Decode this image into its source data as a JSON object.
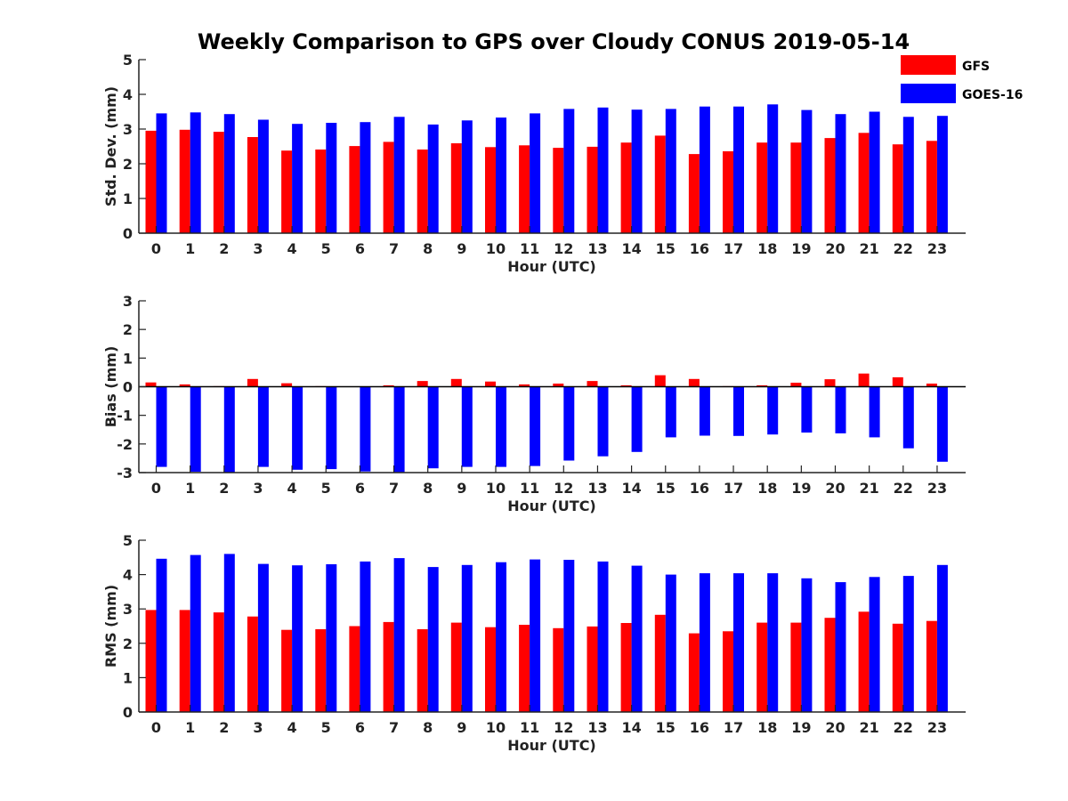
{
  "figure": {
    "title": "Weekly Comparison to GPS over Cloudy CONUS 2019-05-14"
  },
  "legend": {
    "placement": "top-right",
    "items": [
      {
        "label": "GFS",
        "color": "#ff0000"
      },
      {
        "label": "GOES-16",
        "color": "#0000ff"
      }
    ]
  },
  "chart_data": [
    {
      "type": "bar",
      "xlabel": "Hour (UTC)",
      "ylabel": "Std. Dev. (mm)",
      "ylim": [
        0,
        5
      ],
      "yticks": [
        "0",
        "1",
        "2",
        "3",
        "4",
        "5"
      ],
      "zero_line": false,
      "categories": [
        "0",
        "1",
        "2",
        "3",
        "4",
        "5",
        "6",
        "7",
        "8",
        "9",
        "10",
        "11",
        "12",
        "13",
        "14",
        "15",
        "16",
        "17",
        "18",
        "19",
        "20",
        "21",
        "22",
        "23"
      ],
      "series": [
        {
          "name": "GFS",
          "color": "#ff0000",
          "values": [
            2.95,
            2.98,
            2.92,
            2.77,
            2.38,
            2.41,
            2.51,
            2.63,
            2.41,
            2.59,
            2.48,
            2.53,
            2.46,
            2.49,
            2.61,
            2.81,
            2.28,
            2.36,
            2.61,
            2.61,
            2.74,
            2.89,
            2.56,
            2.66
          ]
        },
        {
          "name": "GOES-16",
          "color": "#0000ff",
          "values": [
            3.45,
            3.48,
            3.43,
            3.27,
            3.15,
            3.18,
            3.2,
            3.35,
            3.13,
            3.25,
            3.33,
            3.45,
            3.58,
            3.62,
            3.56,
            3.58,
            3.65,
            3.65,
            3.71,
            3.55,
            3.43,
            3.5,
            3.35,
            3.38
          ]
        }
      ]
    },
    {
      "type": "bar",
      "xlabel": "Hour (UTC)",
      "ylabel": "Bias (mm)",
      "ylim": [
        -3,
        3
      ],
      "yticks": [
        "-3",
        "-2",
        "-1",
        "0",
        "1",
        "2",
        "3"
      ],
      "zero_line": true,
      "categories": [
        "0",
        "1",
        "2",
        "3",
        "4",
        "5",
        "6",
        "7",
        "8",
        "9",
        "10",
        "11",
        "12",
        "13",
        "14",
        "15",
        "16",
        "17",
        "18",
        "19",
        "20",
        "21",
        "22",
        "23"
      ],
      "series": [
        {
          "name": "GFS",
          "color": "#ff0000",
          "values": [
            0.15,
            0.08,
            0.02,
            0.27,
            0.12,
            0.02,
            0.01,
            0.05,
            0.2,
            0.27,
            0.18,
            0.08,
            0.11,
            0.2,
            0.05,
            0.4,
            0.27,
            0.02,
            0.05,
            0.14,
            0.26,
            0.46,
            0.33,
            0.11
          ]
        },
        {
          "name": "GOES-16",
          "color": "#0000ff",
          "values": [
            -2.8,
            -2.97,
            -3.0,
            -2.8,
            -2.9,
            -2.88,
            -2.96,
            -2.98,
            -2.85,
            -2.8,
            -2.8,
            -2.77,
            -2.58,
            -2.43,
            -2.28,
            -1.77,
            -1.71,
            -1.72,
            -1.67,
            -1.6,
            -1.63,
            -1.77,
            -2.15,
            -2.62
          ]
        }
      ]
    },
    {
      "type": "bar",
      "xlabel": "Hour (UTC)",
      "ylabel": "RMS (mm)",
      "ylim": [
        0,
        5
      ],
      "yticks": [
        "0",
        "1",
        "2",
        "3",
        "4",
        "5"
      ],
      "zero_line": false,
      "categories": [
        "0",
        "1",
        "2",
        "3",
        "4",
        "5",
        "6",
        "7",
        "8",
        "9",
        "10",
        "11",
        "12",
        "13",
        "14",
        "15",
        "16",
        "17",
        "18",
        "19",
        "20",
        "21",
        "22",
        "23"
      ],
      "series": [
        {
          "name": "GFS",
          "color": "#ff0000",
          "values": [
            2.97,
            2.97,
            2.9,
            2.78,
            2.39,
            2.41,
            2.5,
            2.62,
            2.41,
            2.6,
            2.47,
            2.54,
            2.44,
            2.49,
            2.59,
            2.83,
            2.29,
            2.35,
            2.6,
            2.6,
            2.74,
            2.92,
            2.57,
            2.65
          ]
        },
        {
          "name": "GOES-16",
          "color": "#0000ff",
          "values": [
            4.46,
            4.57,
            4.6,
            4.31,
            4.27,
            4.3,
            4.38,
            4.48,
            4.22,
            4.28,
            4.36,
            4.44,
            4.43,
            4.38,
            4.26,
            4.0,
            4.04,
            4.04,
            4.04,
            3.89,
            3.78,
            3.93,
            3.96,
            4.28
          ]
        }
      ]
    }
  ]
}
